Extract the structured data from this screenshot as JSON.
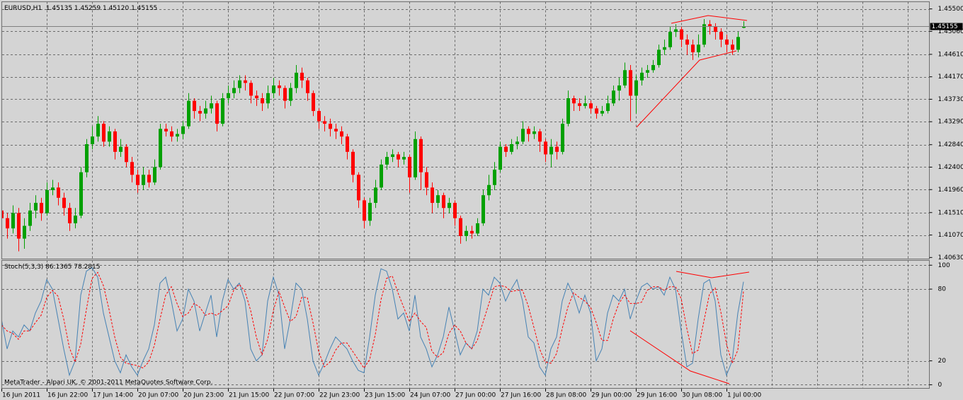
{
  "chart_data": [
    {
      "type": "candlestick",
      "title": "EURUSD,H1  1.45135 1.45259 1.45120 1.45155",
      "up_color": "#00a000",
      "down_color": "#ff0000",
      "grid": true,
      "ylim": [
        1.406,
        1.4564
      ],
      "yticks": [
        {
          "value": 1.455,
          "label": "1.45500"
        },
        {
          "value": 1.4506,
          "label": "1.45060"
        },
        {
          "value": 1.4461,
          "label": "1.44610"
        },
        {
          "value": 1.4417,
          "label": "1.44170"
        },
        {
          "value": 1.4373,
          "label": "1.43730"
        },
        {
          "value": 1.4329,
          "label": "1.43290"
        },
        {
          "value": 1.4284,
          "label": "1.42840"
        },
        {
          "value": 1.424,
          "label": "1.42400"
        },
        {
          "value": 1.4196,
          "label": "1.41960"
        },
        {
          "value": 1.4151,
          "label": "1.41510"
        },
        {
          "value": 1.4107,
          "label": "1.41070"
        },
        {
          "value": 1.4063,
          "label": "1.40630"
        }
      ],
      "last_price": 1.45155,
      "x_labels": [
        "16 Jun 2011",
        "16 Jun 22:00",
        "17 Jun 14:00",
        "20 Jun 07:00",
        "20 Jun 23:00",
        "21 Jun 15:00",
        "22 Jun 07:00",
        "22 Jun 23:00",
        "23 Jun 15:00",
        "24 Jun 07:00",
        "27 Jun 00:00",
        "27 Jun 16:00",
        "28 Jun 08:00",
        "29 Jun 00:00",
        "29 Jun 16:00",
        "30 Jun 08:00",
        "1 Jul 00:00"
      ],
      "ohlc": [
        [
          1.4155,
          1.417,
          1.4125,
          1.414
        ],
        [
          1.414,
          1.415,
          1.41,
          1.412
        ],
        [
          1.412,
          1.4165,
          1.411,
          1.415
        ],
        [
          1.415,
          1.416,
          1.4075,
          1.41
        ],
        [
          1.41,
          1.414,
          1.408,
          1.4125
        ],
        [
          1.4125,
          1.417,
          1.4115,
          1.4155
        ],
        [
          1.4155,
          1.4185,
          1.414,
          1.417
        ],
        [
          1.417,
          1.418,
          1.4135,
          1.415
        ],
        [
          1.415,
          1.421,
          1.4145,
          1.4195
        ],
        [
          1.4195,
          1.4215,
          1.4185,
          1.42
        ],
        [
          1.42,
          1.421,
          1.4165,
          1.418
        ],
        [
          1.418,
          1.419,
          1.4145,
          1.416
        ],
        [
          1.416,
          1.417,
          1.4115,
          1.413
        ],
        [
          1.413,
          1.416,
          1.412,
          1.4145
        ],
        [
          1.4145,
          1.424,
          1.414,
          1.423
        ],
        [
          1.423,
          1.4295,
          1.422,
          1.4285
        ],
        [
          1.4285,
          1.432,
          1.4275,
          1.43
        ],
        [
          1.43,
          1.434,
          1.429,
          1.4325
        ],
        [
          1.4325,
          1.433,
          1.428,
          1.429
        ],
        [
          1.429,
          1.432,
          1.428,
          1.431
        ],
        [
          1.431,
          1.4315,
          1.4255,
          1.427
        ],
        [
          1.427,
          1.4295,
          1.426,
          1.428
        ],
        [
          1.428,
          1.4285,
          1.424,
          1.425
        ],
        [
          1.425,
          1.426,
          1.421,
          1.4225
        ],
        [
          1.4225,
          1.4235,
          1.419,
          1.4205
        ],
        [
          1.4205,
          1.424,
          1.4195,
          1.4225
        ],
        [
          1.4225,
          1.4235,
          1.42,
          1.421
        ],
        [
          1.421,
          1.4255,
          1.4205,
          1.424
        ],
        [
          1.424,
          1.4325,
          1.4235,
          1.4315
        ],
        [
          1.4315,
          1.4325,
          1.43,
          1.431
        ],
        [
          1.431,
          1.432,
          1.429,
          1.43
        ],
        [
          1.43,
          1.4315,
          1.429,
          1.4305
        ],
        [
          1.4305,
          1.433,
          1.4295,
          1.432
        ],
        [
          1.432,
          1.4385,
          1.4315,
          1.437
        ],
        [
          1.437,
          1.4375,
          1.4335,
          1.435
        ],
        [
          1.435,
          1.436,
          1.433,
          1.4345
        ],
        [
          1.4345,
          1.437,
          1.4335,
          1.4355
        ],
        [
          1.4355,
          1.438,
          1.4345,
          1.4365
        ],
        [
          1.4365,
          1.437,
          1.431,
          1.4325
        ],
        [
          1.4325,
          1.4385,
          1.432,
          1.4375
        ],
        [
          1.4375,
          1.44,
          1.4365,
          1.4385
        ],
        [
          1.4385,
          1.441,
          1.4375,
          1.4395
        ],
        [
          1.4395,
          1.442,
          1.4385,
          1.441
        ],
        [
          1.441,
          1.442,
          1.439,
          1.4405
        ],
        [
          1.4405,
          1.441,
          1.4365,
          1.438
        ],
        [
          1.438,
          1.439,
          1.436,
          1.4375
        ],
        [
          1.4375,
          1.4385,
          1.435,
          1.4365
        ],
        [
          1.4365,
          1.44,
          1.4355,
          1.4385
        ],
        [
          1.4385,
          1.4415,
          1.4375,
          1.44
        ],
        [
          1.44,
          1.441,
          1.438,
          1.4395
        ],
        [
          1.4395,
          1.44,
          1.4355,
          1.437
        ],
        [
          1.437,
          1.4405,
          1.436,
          1.4395
        ],
        [
          1.4395,
          1.444,
          1.4385,
          1.4425
        ],
        [
          1.4425,
          1.4435,
          1.4395,
          1.441
        ],
        [
          1.441,
          1.4415,
          1.437,
          1.4385
        ],
        [
          1.4385,
          1.439,
          1.434,
          1.435
        ],
        [
          1.435,
          1.4355,
          1.4315,
          1.433
        ],
        [
          1.433,
          1.434,
          1.431,
          1.4325
        ],
        [
          1.4325,
          1.4335,
          1.43,
          1.4315
        ],
        [
          1.4315,
          1.4325,
          1.4295,
          1.431
        ],
        [
          1.431,
          1.432,
          1.4285,
          1.43
        ],
        [
          1.43,
          1.4305,
          1.4255,
          1.427
        ],
        [
          1.427,
          1.4275,
          1.421,
          1.4225
        ],
        [
          1.4225,
          1.423,
          1.416,
          1.4175
        ],
        [
          1.4175,
          1.418,
          1.412,
          1.4135
        ],
        [
          1.4135,
          1.418,
          1.4125,
          1.417
        ],
        [
          1.417,
          1.4215,
          1.416,
          1.42
        ],
        [
          1.42,
          1.4255,
          1.4195,
          1.4245
        ],
        [
          1.4245,
          1.427,
          1.4235,
          1.426
        ],
        [
          1.426,
          1.4275,
          1.425,
          1.4265
        ],
        [
          1.4265,
          1.427,
          1.424,
          1.4255
        ],
        [
          1.4255,
          1.427,
          1.4245,
          1.426
        ],
        [
          1.426,
          1.4265,
          1.419,
          1.422
        ],
        [
          1.422,
          1.431,
          1.4215,
          1.4295
        ],
        [
          1.4295,
          1.43,
          1.4195,
          1.423
        ],
        [
          1.423,
          1.424,
          1.4185,
          1.42
        ],
        [
          1.42,
          1.421,
          1.415,
          1.417
        ],
        [
          1.417,
          1.4195,
          1.416,
          1.4185
        ],
        [
          1.4185,
          1.419,
          1.414,
          1.416
        ],
        [
          1.416,
          1.418,
          1.415,
          1.417
        ],
        [
          1.417,
          1.4175,
          1.4125,
          1.414
        ],
        [
          1.414,
          1.4145,
          1.409,
          1.4105
        ],
        [
          1.4105,
          1.4125,
          1.4095,
          1.4115
        ],
        [
          1.4115,
          1.4125,
          1.41,
          1.411
        ],
        [
          1.411,
          1.414,
          1.4105,
          1.413
        ],
        [
          1.413,
          1.4195,
          1.4125,
          1.4185
        ],
        [
          1.4185,
          1.4225,
          1.4175,
          1.4205
        ],
        [
          1.4205,
          1.425,
          1.4195,
          1.4235
        ],
        [
          1.4235,
          1.429,
          1.423,
          1.428
        ],
        [
          1.428,
          1.4285,
          1.426,
          1.427
        ],
        [
          1.427,
          1.4295,
          1.4265,
          1.4285
        ],
        [
          1.4285,
          1.43,
          1.4275,
          1.429
        ],
        [
          1.429,
          1.433,
          1.4285,
          1.4315
        ],
        [
          1.4315,
          1.432,
          1.429,
          1.4305
        ],
        [
          1.4305,
          1.432,
          1.4295,
          1.431
        ],
        [
          1.431,
          1.4315,
          1.427,
          1.429
        ],
        [
          1.429,
          1.4295,
          1.425,
          1.4265
        ],
        [
          1.4265,
          1.4295,
          1.424,
          1.428
        ],
        [
          1.428,
          1.429,
          1.4255,
          1.427
        ],
        [
          1.427,
          1.4335,
          1.4265,
          1.4325
        ],
        [
          1.4325,
          1.439,
          1.432,
          1.4375
        ],
        [
          1.4375,
          1.438,
          1.435,
          1.4365
        ],
        [
          1.4365,
          1.4375,
          1.435,
          1.436
        ],
        [
          1.436,
          1.438,
          1.4355,
          1.4365
        ],
        [
          1.4365,
          1.437,
          1.4345,
          1.4355
        ],
        [
          1.4355,
          1.436,
          1.4335,
          1.4345
        ],
        [
          1.4345,
          1.436,
          1.434,
          1.435
        ],
        [
          1.435,
          1.438,
          1.4345,
          1.4365
        ],
        [
          1.4365,
          1.44,
          1.436,
          1.439
        ],
        [
          1.439,
          1.4415,
          1.437,
          1.44
        ],
        [
          1.44,
          1.4445,
          1.4395,
          1.443
        ],
        [
          1.443,
          1.444,
          1.433,
          1.438
        ],
        [
          1.438,
          1.442,
          1.4345,
          1.441
        ],
        [
          1.441,
          1.4435,
          1.44,
          1.4425
        ],
        [
          1.4425,
          1.444,
          1.4415,
          1.443
        ],
        [
          1.443,
          1.445,
          1.4425,
          1.444
        ],
        [
          1.444,
          1.448,
          1.4435,
          1.447
        ],
        [
          1.447,
          1.449,
          1.446,
          1.4475
        ],
        [
          1.4475,
          1.4515,
          1.447,
          1.4505
        ],
        [
          1.4505,
          1.452,
          1.4495,
          1.451
        ],
        [
          1.451,
          1.4515,
          1.4475,
          1.449
        ],
        [
          1.449,
          1.45,
          1.446,
          1.448
        ],
        [
          1.448,
          1.449,
          1.445,
          1.4465
        ],
        [
          1.4465,
          1.45,
          1.4455,
          1.448
        ],
        [
          1.448,
          1.453,
          1.4475,
          1.452
        ],
        [
          1.452,
          1.4528,
          1.45,
          1.4515
        ],
        [
          1.4515,
          1.4522,
          1.449,
          1.4505
        ],
        [
          1.4505,
          1.4512,
          1.4475,
          1.449
        ],
        [
          1.449,
          1.45,
          1.4465,
          1.448
        ],
        [
          1.448,
          1.449,
          1.446,
          1.447
        ],
        [
          1.447,
          1.4505,
          1.4465,
          1.4495
        ],
        [
          1.4513,
          1.4526,
          1.4512,
          1.4515
        ]
      ]
    },
    {
      "type": "line",
      "title": "Stoch(5,3,3) 86.1365 78.2815",
      "note": "MetaTrader - Alpari UK, © 2001-2011 MetaQuotes Software Corp.",
      "grid": true,
      "ylim": [
        -3,
        104
      ],
      "yticks": [
        100,
        80,
        20,
        0
      ],
      "series": [
        {
          "color": "#4682b4",
          "line_style": "solid",
          "values": [
            55,
            30,
            45,
            40,
            50,
            45,
            60,
            70,
            88,
            80,
            55,
            30,
            8,
            20,
            75,
            95,
            98,
            90,
            60,
            40,
            20,
            10,
            25,
            15,
            8,
            20,
            30,
            50,
            85,
            90,
            70,
            45,
            55,
            80,
            70,
            45,
            60,
            75,
            40,
            70,
            88,
            80,
            85,
            70,
            30,
            20,
            25,
            70,
            90,
            75,
            30,
            55,
            85,
            80,
            55,
            20,
            8,
            18,
            30,
            40,
            35,
            30,
            20,
            12,
            10,
            40,
            75,
            97,
            95,
            80,
            55,
            60,
            45,
            75,
            40,
            30,
            15,
            25,
            40,
            65,
            45,
            25,
            35,
            30,
            45,
            80,
            75,
            90,
            85,
            70,
            80,
            88,
            70,
            40,
            35,
            15,
            8,
            30,
            40,
            70,
            85,
            75,
            60,
            75,
            60,
            20,
            30,
            60,
            75,
            70,
            80,
            55,
            70,
            82,
            85,
            80,
            82,
            75,
            90,
            80,
            45,
            15,
            18,
            55,
            85,
            88,
            70,
            25,
            8,
            20,
            60,
            86.1365
          ]
        },
        {
          "color": "#ff0000",
          "line_style": "dashed",
          "values": [
            50,
            45,
            43,
            38,
            45,
            45,
            52,
            58,
            73,
            79,
            74,
            55,
            31,
            19,
            34,
            63,
            89,
            94,
            83,
            63,
            40,
            23,
            18,
            17,
            16,
            14,
            19,
            33,
            55,
            75,
            82,
            68,
            57,
            60,
            68,
            65,
            58,
            60,
            58,
            62,
            66,
            79,
            84,
            78,
            62,
            40,
            25,
            38,
            62,
            78,
            65,
            53,
            57,
            73,
            73,
            52,
            28,
            15,
            19,
            29,
            35,
            35,
            28,
            21,
            14,
            21,
            42,
            71,
            89,
            91,
            77,
            65,
            53,
            60,
            53,
            48,
            28,
            23,
            27,
            43,
            50,
            45,
            35,
            30,
            37,
            52,
            67,
            82,
            83,
            82,
            78,
            79,
            79,
            66,
            48,
            30,
            19,
            18,
            26,
            47,
            65,
            77,
            73,
            70,
            65,
            52,
            37,
            37,
            55,
            68,
            75,
            68,
            68,
            69,
            79,
            82,
            82,
            79,
            82,
            82,
            72,
            47,
            26,
            29,
            53,
            76,
            81,
            61,
            34,
            18,
            29,
            78.2815
          ]
        }
      ]
    }
  ]
}
